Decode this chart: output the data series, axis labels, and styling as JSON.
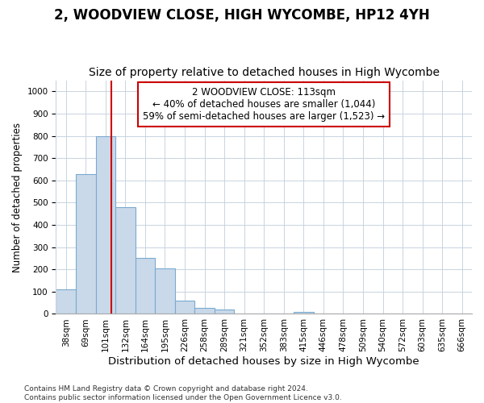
{
  "title": "2, WOODVIEW CLOSE, HIGH WYCOMBE, HP12 4YH",
  "subtitle": "Size of property relative to detached houses in High Wycombe",
  "xlabel": "Distribution of detached houses by size in High Wycombe",
  "ylabel": "Number of detached properties",
  "bar_labels": [
    "38sqm",
    "69sqm",
    "101sqm",
    "132sqm",
    "164sqm",
    "195sqm",
    "226sqm",
    "258sqm",
    "289sqm",
    "321sqm",
    "352sqm",
    "383sqm",
    "415sqm",
    "446sqm",
    "478sqm",
    "509sqm",
    "540sqm",
    "572sqm",
    "603sqm",
    "635sqm",
    "666sqm"
  ],
  "bar_values": [
    110,
    630,
    800,
    480,
    250,
    205,
    60,
    28,
    18,
    0,
    0,
    0,
    10,
    0,
    0,
    0,
    0,
    0,
    0,
    0,
    0
  ],
  "bar_color": "#c9d9ea",
  "bar_edge_color": "#7aaacf",
  "vline_color": "#cc0000",
  "vline_x": 2.3,
  "annotation_line1": "2 WOODVIEW CLOSE: 113sqm",
  "annotation_line2": "← 40% of detached houses are smaller (1,044)",
  "annotation_line3": "59% of semi-detached houses are larger (1,523) →",
  "annotation_box_color": "#ffffff",
  "annotation_box_edge_color": "#cc0000",
  "ylim": [
    0,
    1050
  ],
  "yticks": [
    0,
    100,
    200,
    300,
    400,
    500,
    600,
    700,
    800,
    900,
    1000
  ],
  "grid_color": "#c8d4e0",
  "background_color": "#ffffff",
  "footer_line1": "Contains HM Land Registry data © Crown copyright and database right 2024.",
  "footer_line2": "Contains public sector information licensed under the Open Government Licence v3.0.",
  "title_fontsize": 12,
  "subtitle_fontsize": 10,
  "xlabel_fontsize": 9.5,
  "ylabel_fontsize": 8.5,
  "tick_fontsize": 7.5,
  "annotation_fontsize": 8.5,
  "footer_fontsize": 6.5
}
